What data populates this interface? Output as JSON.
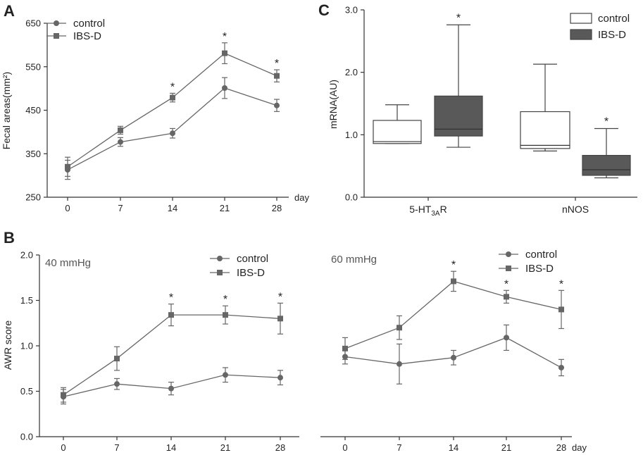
{
  "colors": {
    "series": "#666666",
    "box_ibs": "#595959",
    "box_control": "#ffffff",
    "axis": "#333333"
  },
  "chart_data": [
    {
      "id": "A",
      "panel_label": "A",
      "type": "line",
      "title": "",
      "xlabel": "day",
      "ylabel": "Fecal areas(mm²)",
      "x": [
        0,
        7,
        14,
        21,
        28
      ],
      "x_tick_labels": [
        "0",
        "7",
        "14",
        "21",
        "28"
      ],
      "ylim": [
        250,
        650
      ],
      "y_ticks": [
        250,
        350,
        450,
        550,
        650
      ],
      "y_tick_labels": [
        "250",
        "350",
        "450",
        "550",
        "650"
      ],
      "legend": "top-left",
      "series": [
        {
          "name": "control",
          "marker": "circle",
          "values": [
            313,
            377,
            397,
            501,
            461
          ],
          "errors": [
            22,
            10,
            11,
            24,
            14
          ]
        },
        {
          "name": "IBS-D",
          "marker": "square",
          "values": [
            320,
            404,
            479,
            581,
            529
          ],
          "errors": [
            22,
            9,
            10,
            24,
            14
          ]
        }
      ],
      "stars": [
        "",
        "",
        "*",
        "*",
        "*"
      ]
    },
    {
      "id": "B1",
      "panel_label": "B",
      "type": "line",
      "title": "40 mmHg",
      "xlabel": "",
      "ylabel": "AWR score",
      "x": [
        0,
        7,
        14,
        21,
        28
      ],
      "x_tick_labels": [
        "0",
        "7",
        "14",
        "21",
        "28"
      ],
      "ylim": [
        0.0,
        2.0
      ],
      "y_ticks": [
        0.0,
        0.5,
        1.0,
        1.5,
        2.0
      ],
      "y_tick_labels": [
        "0.0",
        "0.5",
        "1.0",
        "1.5",
        "2.0"
      ],
      "legend": "top-right",
      "series": [
        {
          "name": "control",
          "marker": "circle",
          "values": [
            0.44,
            0.58,
            0.53,
            0.68,
            0.65
          ],
          "errors": [
            0.08,
            0.06,
            0.07,
            0.08,
            0.08
          ]
        },
        {
          "name": "IBS-D",
          "marker": "square",
          "values": [
            0.46,
            0.86,
            1.34,
            1.34,
            1.3
          ],
          "errors": [
            0.08,
            0.13,
            0.12,
            0.1,
            0.17
          ]
        }
      ],
      "stars": [
        "",
        "",
        "*",
        "*",
        "*"
      ]
    },
    {
      "id": "B2",
      "panel_label": "",
      "type": "line",
      "title": "60 mmHg",
      "xlabel": "day",
      "ylabel": "",
      "x": [
        0,
        7,
        14,
        21,
        28
      ],
      "x_tick_labels": [
        "0",
        "7",
        "14",
        "21",
        "28"
      ],
      "ylim": [
        0.0,
        2.0
      ],
      "legend": "top-right",
      "series": [
        {
          "name": "control",
          "marker": "circle",
          "values": [
            0.88,
            0.8,
            0.87,
            1.09,
            0.76
          ],
          "errors": [
            0.08,
            0.22,
            0.08,
            0.14,
            0.09
          ]
        },
        {
          "name": "IBS-D",
          "marker": "square",
          "values": [
            0.97,
            1.2,
            1.71,
            1.54,
            1.4
          ],
          "errors": [
            0.12,
            0.13,
            0.11,
            0.07,
            0.21
          ]
        }
      ],
      "stars": [
        "",
        "",
        "*",
        "*",
        "*"
      ]
    },
    {
      "id": "C",
      "panel_label": "C",
      "type": "box",
      "title": "",
      "xlabel": "",
      "ylabel": "mRNA(AU)",
      "categories": [
        "5-HT3AR",
        "nNOS"
      ],
      "category_labels": [
        {
          "main": "5-HT",
          "sub": "3A",
          "suffix": "R"
        },
        {
          "main": "nNOS",
          "sub": "",
          "suffix": ""
        }
      ],
      "ylim": [
        0.0,
        3.0
      ],
      "y_ticks": [
        0.0,
        1.0,
        2.0,
        3.0
      ],
      "y_tick_labels": [
        "0.0",
        "1.0",
        "2.0",
        "3.0"
      ],
      "legend": "top-right",
      "series": [
        {
          "name": "control",
          "fill": "#ffffff",
          "boxes": [
            {
              "min": 0.86,
              "q1": 0.86,
              "median": 0.89,
              "q3": 1.23,
              "max": 1.48
            },
            {
              "min": 0.74,
              "q1": 0.78,
              "median": 0.83,
              "q3": 1.37,
              "max": 2.13
            }
          ]
        },
        {
          "name": "IBS-D",
          "fill": "#595959",
          "boxes": [
            {
              "min": 0.8,
              "q1": 0.98,
              "median": 1.09,
              "q3": 1.62,
              "max": 2.76
            },
            {
              "min": 0.31,
              "q1": 0.35,
              "median": 0.44,
              "q3": 0.67,
              "max": 1.1
            }
          ]
        }
      ],
      "stars": [
        [
          "",
          "*"
        ],
        [
          "",
          "*"
        ]
      ]
    }
  ]
}
